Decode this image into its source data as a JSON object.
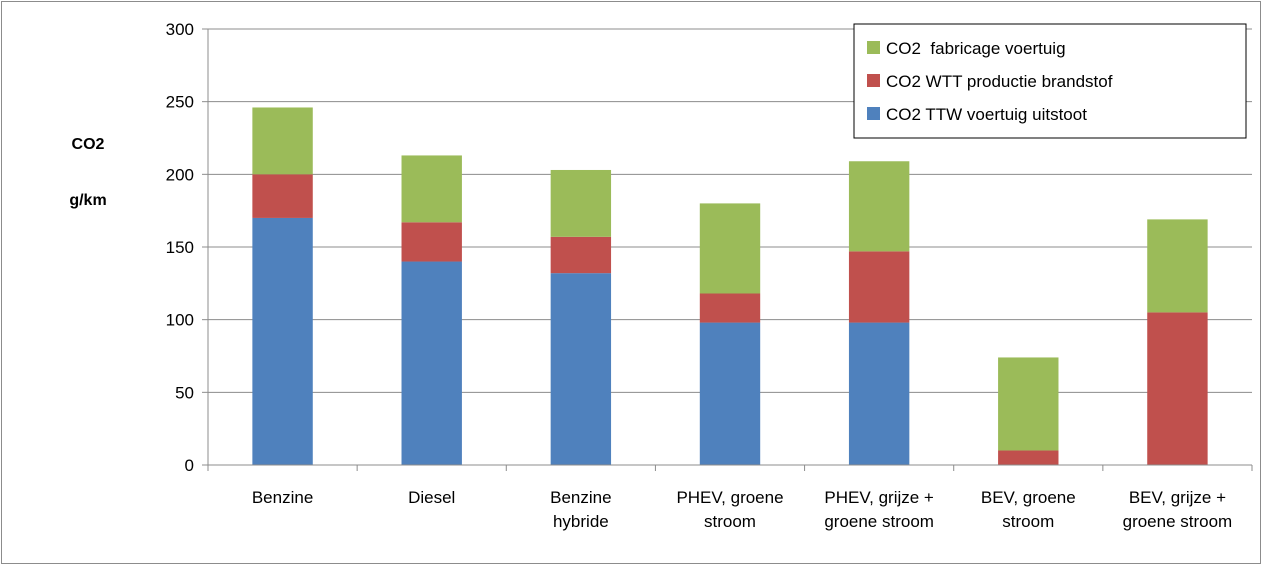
{
  "chart_data": {
    "type": "bar",
    "stacked": true,
    "categories": [
      [
        "Benzine"
      ],
      [
        "Diesel"
      ],
      [
        "Benzine",
        "hybride"
      ],
      [
        "PHEV, groene",
        "stroom"
      ],
      [
        "PHEV, grijze +",
        "groene stroom"
      ],
      [
        "BEV, groene",
        "stroom"
      ],
      [
        "BEV, grijze +",
        "groene stroom"
      ]
    ],
    "series": [
      {
        "name": "CO2 TTW voertuig uitstoot",
        "color": "#4f81bd",
        "values": [
          170,
          140,
          132,
          98,
          98,
          0,
          0
        ]
      },
      {
        "name": "CO2 WTT productie brandstof",
        "color": "#c0504d",
        "values": [
          30,
          27,
          25,
          20,
          49,
          10,
          105
        ]
      },
      {
        "name": "CO2  fabricage voertuig",
        "color": "#9bbb59",
        "values": [
          46,
          46,
          46,
          62,
          62,
          64,
          64
        ]
      }
    ],
    "legend_order": [
      2,
      1,
      0
    ],
    "legend_position": "top-right",
    "ylabel": [
      "CO2",
      "g/km"
    ],
    "ylim": [
      0,
      300
    ],
    "yticks": [
      0,
      50,
      100,
      150,
      200,
      250,
      300
    ],
    "grid": true
  }
}
